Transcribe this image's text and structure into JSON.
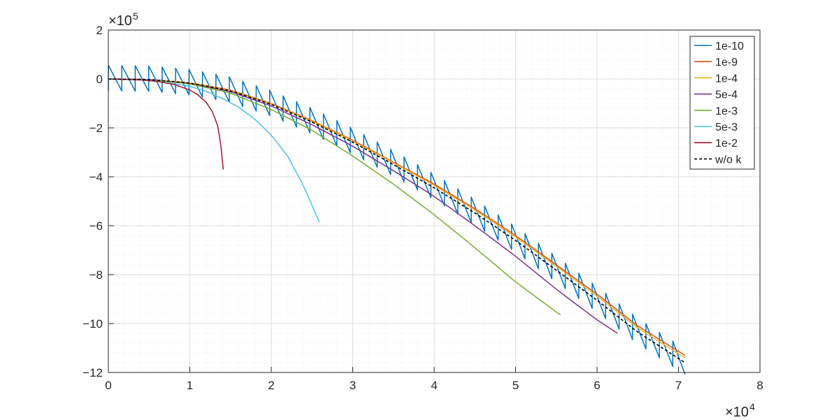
{
  "chart_data": {
    "type": "line",
    "title": "",
    "xlabel": "",
    "ylabel": "",
    "xlim": [
      0,
      80000
    ],
    "ylim": [
      -1200000,
      200000
    ],
    "x_exponent_label": "×10",
    "x_exponent_power": "4",
    "y_exponent_label": "×10",
    "y_exponent_power": "5",
    "x_ticks": [
      0,
      10000,
      20000,
      30000,
      40000,
      50000,
      60000,
      70000,
      80000
    ],
    "x_tick_labels": [
      "0",
      "1",
      "2",
      "3",
      "4",
      "5",
      "6",
      "7",
      "8"
    ],
    "y_ticks": [
      200000,
      0,
      -200000,
      -400000,
      -600000,
      -800000,
      -1000000,
      -1200000
    ],
    "y_tick_labels": [
      "2",
      "0",
      "−2",
      "−4",
      "−6",
      "−8",
      "−10",
      "−12"
    ],
    "grid": true,
    "minor_grid": true,
    "legend_position": "top-right",
    "series": [
      {
        "name": "1e-10",
        "color": "#0072BD",
        "style": "solid",
        "sawtooth": {
          "x_start": 0,
          "x_end": 70800,
          "period": 1650,
          "amplitude": 80000,
          "base": "w/o k"
        }
      },
      {
        "name": "1e-9",
        "color": "#D95319",
        "style": "solid",
        "x": [
          0,
          5000,
          10000,
          15000,
          20000,
          25000,
          30000,
          35000,
          40000,
          45000,
          50000,
          55000,
          60000,
          65000,
          70800
        ],
        "y": [
          0,
          -2000,
          -15000,
          -45000,
          -100000,
          -170000,
          -250000,
          -340000,
          -430000,
          -530000,
          -640000,
          -760000,
          -880000,
          -1010000,
          -1130000
        ]
      },
      {
        "name": "1e-4",
        "color": "#EDB120",
        "style": "solid",
        "x": [
          0,
          5000,
          10000,
          15000,
          20000,
          25000,
          30000,
          35000,
          40000,
          45000,
          50000,
          55000,
          60000,
          65000,
          70800
        ],
        "y": [
          0,
          -2000,
          -16000,
          -47000,
          -102000,
          -173000,
          -253000,
          -343000,
          -435000,
          -536000,
          -646000,
          -766000,
          -888000,
          -1018000,
          -1140000
        ]
      },
      {
        "name": "5e-4",
        "color": "#7E2F8E",
        "style": "solid",
        "x": [
          0,
          5000,
          10000,
          15000,
          20000,
          25000,
          30000,
          35000,
          40000,
          45000,
          50000,
          55000,
          60000,
          62500
        ],
        "y": [
          0,
          -2000,
          -18000,
          -52000,
          -110000,
          -187000,
          -275000,
          -375000,
          -480000,
          -600000,
          -725000,
          -860000,
          -985000,
          -1040000
        ]
      },
      {
        "name": "1e-3",
        "color": "#77AC30",
        "style": "solid",
        "x": [
          0,
          5000,
          10000,
          15000,
          20000,
          25000,
          30000,
          35000,
          40000,
          45000,
          50000,
          55500
        ],
        "y": [
          0,
          -3000,
          -20000,
          -58000,
          -125000,
          -210000,
          -315000,
          -430000,
          -555000,
          -690000,
          -830000,
          -965000
        ]
      },
      {
        "name": "5e-3",
        "color": "#4DBEEE",
        "style": "solid",
        "x": [
          0,
          5000,
          10000,
          12000,
          14000,
          16000,
          18000,
          20000,
          22000,
          24000,
          25900
        ],
        "y": [
          0,
          -4000,
          -30000,
          -50000,
          -80000,
          -115000,
          -165000,
          -230000,
          -315000,
          -440000,
          -585000
        ]
      },
      {
        "name": "1e-2",
        "color": "#A2142F",
        "style": "solid",
        "x": [
          0,
          4000,
          6000,
          8000,
          10000,
          11000,
          12000,
          12800,
          13400,
          13800,
          14100
        ],
        "y": [
          0,
          -4000,
          -10000,
          -22000,
          -45000,
          -65000,
          -95000,
          -135000,
          -190000,
          -265000,
          -370000
        ]
      },
      {
        "name": "w/o k",
        "color": "#000000",
        "style": "dashed",
        "x": [
          0,
          5000,
          10000,
          15000,
          20000,
          25000,
          30000,
          35000,
          40000,
          45000,
          50000,
          55000,
          60000,
          65000,
          70800
        ],
        "y": [
          0,
          -2500,
          -17000,
          -48000,
          -104000,
          -176000,
          -258000,
          -350000,
          -445000,
          -548000,
          -660000,
          -782000,
          -905000,
          -1035000,
          -1160000
        ]
      }
    ]
  }
}
